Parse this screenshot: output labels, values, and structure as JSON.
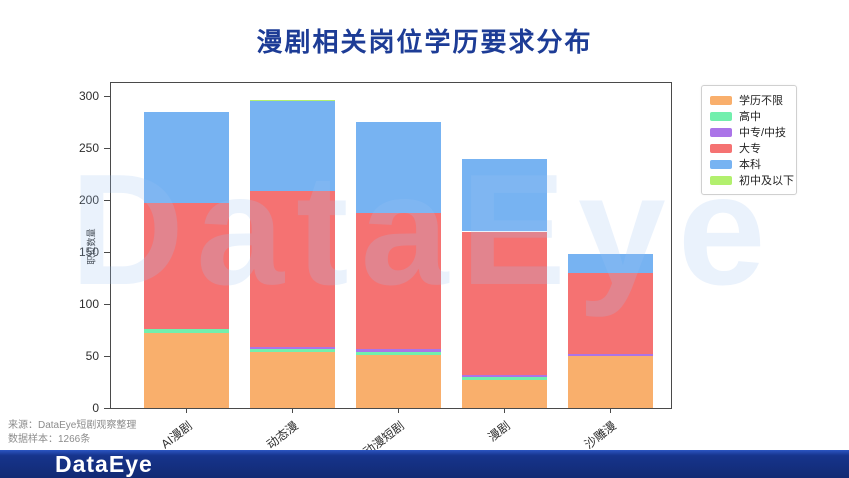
{
  "title": "漫剧相关岗位学历要求分布",
  "watermark": "DataEye",
  "source": {
    "line1": "来源：DataEye短剧观察整理",
    "line2": "数据样本：1266条"
  },
  "footer": {
    "logo": "DataEye"
  },
  "colors": {
    "title": "#1D3C96",
    "footer_bg": "#16348C",
    "axis": "#4A4A4A",
    "source_text": "#8C8C8C"
  },
  "chart_data": {
    "type": "bar",
    "stacked": true,
    "title": "漫剧相关岗位学历要求分布",
    "xlabel": "",
    "ylabel": "职位数量",
    "ylim": [
      0,
      313
    ],
    "yticks": [
      0,
      50,
      100,
      150,
      200,
      250,
      300
    ],
    "grid": false,
    "legend_position": "upper right",
    "categories": [
      "AI漫剧",
      "动态漫",
      "动漫短剧",
      "漫剧",
      "沙雕漫"
    ],
    "series": [
      {
        "name": "学历不限",
        "color": "#F9AF6C",
        "values": [
          72,
          54,
          51,
          27,
          50
        ]
      },
      {
        "name": "高中",
        "color": "#72EFAD",
        "values": [
          4,
          3,
          3,
          3,
          0
        ]
      },
      {
        "name": "中专/中技",
        "color": "#AB74E8",
        "values": [
          0,
          2,
          3,
          2,
          2
        ]
      },
      {
        "name": "大专",
        "color": "#F57272",
        "values": [
          121,
          150,
          131,
          138,
          78
        ]
      },
      {
        "name": "本科",
        "color": "#77B3F2",
        "values": [
          88,
          87,
          87,
          70,
          18
        ]
      },
      {
        "name": "初中及以下",
        "color": "#B2F06E",
        "values": [
          0,
          1,
          0,
          0,
          0
        ]
      }
    ],
    "totals": [
      285,
      297,
      275,
      240,
      148
    ]
  }
}
